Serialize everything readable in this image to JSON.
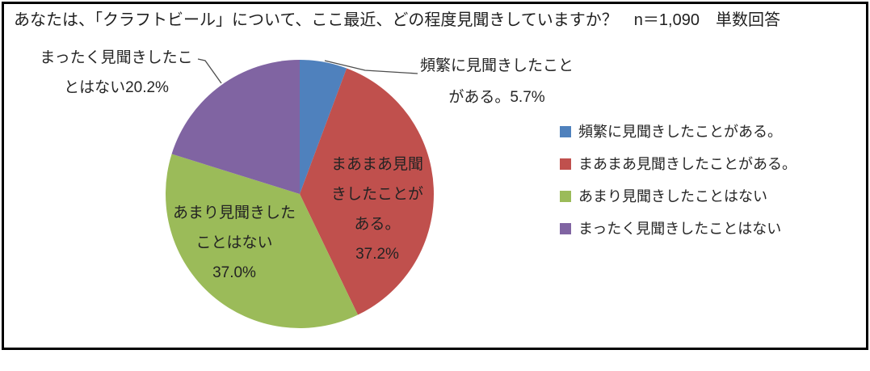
{
  "title": "あなたは、「クラフトビール」について、ここ最近、どの程度見聞きしていますか？　n＝1,090　単数回答",
  "chart_data": {
    "type": "pie",
    "title": "あなたは、「クラフトビール」について、ここ最近、どの程度見聞きしていますか？",
    "sample_note": "n＝1,090　単数回答",
    "legend_position": "right",
    "start_angle_deg": 0,
    "direction": "clockwise",
    "series": [
      {
        "name": "頻繁に見聞きしたことがある。",
        "value": 5.7,
        "color": "#4F81BD"
      },
      {
        "name": "まあまあ見聞きしたことがある。",
        "value": 37.2,
        "color": "#C0504D"
      },
      {
        "name": "あまり見聞きしたことはない",
        "value": 37.0,
        "color": "#9BBB59"
      },
      {
        "name": "まったく見聞きしたことはない",
        "value": 20.2,
        "color": "#8064A2"
      }
    ]
  },
  "callouts": {
    "blue": {
      "lines": [
        "頻繁に見聞きしたこと",
        "がある。5.7%"
      ]
    },
    "purple": {
      "lines": [
        "まったく見聞きしたこ",
        "とはない20.2%"
      ]
    },
    "red": {
      "lines": [
        "まあまあ見聞",
        "きしたことが",
        "ある。",
        "37.2%"
      ]
    },
    "green": {
      "lines": [
        "あまり見聞きした",
        "ことはない",
        "37.0%"
      ]
    }
  },
  "colors": {
    "frame_border": "#000000",
    "leader_line": "#4d4d4d",
    "text": "#262626"
  }
}
